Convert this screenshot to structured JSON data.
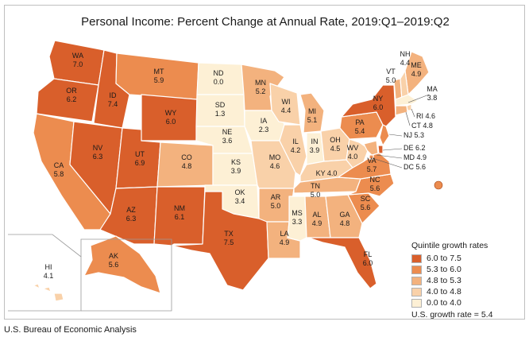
{
  "title": "Personal Income: Percent Change at Annual Rate, 2019:Q1–2019:Q2",
  "source": "U.S. Bureau of Economic Analysis",
  "legend": {
    "title": "Quintile growth rates",
    "classes": [
      {
        "label": "6.0 to 7.5",
        "color": "#d95f2b"
      },
      {
        "label": "5.3 to 6.0",
        "color": "#ec8c4f"
      },
      {
        "label": "4.8 to 5.3",
        "color": "#f3b27e"
      },
      {
        "label": "4.0 to 4.8",
        "color": "#f9d1a9"
      },
      {
        "label": "0.0 to 4.0",
        "color": "#fdf0d5"
      }
    ],
    "us_rate": "U.S. growth rate = 5.4"
  },
  "states": [
    {
      "abbr": "WA",
      "value": "7.0"
    },
    {
      "abbr": "OR",
      "value": "6.2"
    },
    {
      "abbr": "CA",
      "value": "5.8"
    },
    {
      "abbr": "ID",
      "value": "7.4"
    },
    {
      "abbr": "NV",
      "value": "6.3"
    },
    {
      "abbr": "UT",
      "value": "6.9"
    },
    {
      "abbr": "AZ",
      "value": "6.3"
    },
    {
      "abbr": "MT",
      "value": "5.9"
    },
    {
      "abbr": "WY",
      "value": "6.0"
    },
    {
      "abbr": "CO",
      "value": "4.8"
    },
    {
      "abbr": "NM",
      "value": "6.1"
    },
    {
      "abbr": "ND",
      "value": "0.0"
    },
    {
      "abbr": "SD",
      "value": "1.3"
    },
    {
      "abbr": "NE",
      "value": "3.6"
    },
    {
      "abbr": "KS",
      "value": "3.9"
    },
    {
      "abbr": "OK",
      "value": "3.4"
    },
    {
      "abbr": "TX",
      "value": "7.5"
    },
    {
      "abbr": "MN",
      "value": "5.2"
    },
    {
      "abbr": "IA",
      "value": "2.3"
    },
    {
      "abbr": "MO",
      "value": "4.6"
    },
    {
      "abbr": "AR",
      "value": "5.0"
    },
    {
      "abbr": "LA",
      "value": "4.9"
    },
    {
      "abbr": "WI",
      "value": "4.4"
    },
    {
      "abbr": "IL",
      "value": "4.2"
    },
    {
      "abbr": "MI",
      "value": "5.1"
    },
    {
      "abbr": "IN",
      "value": "3.9"
    },
    {
      "abbr": "OH",
      "value": "4.5"
    },
    {
      "abbr": "KY",
      "value": "4.0"
    },
    {
      "abbr": "TN",
      "value": "5.0"
    },
    {
      "abbr": "MS",
      "value": "3.3"
    },
    {
      "abbr": "AL",
      "value": "4.9"
    },
    {
      "abbr": "GA",
      "value": "4.8"
    },
    {
      "abbr": "FL",
      "value": "6.0"
    },
    {
      "abbr": "SC",
      "value": "5.6"
    },
    {
      "abbr": "NC",
      "value": "5.6"
    },
    {
      "abbr": "VA",
      "value": "5.7"
    },
    {
      "abbr": "WV",
      "value": "4.0"
    },
    {
      "abbr": "PA",
      "value": "5.4"
    },
    {
      "abbr": "NY",
      "value": "6.0"
    },
    {
      "abbr": "ME",
      "value": "4.9"
    },
    {
      "abbr": "VT",
      "value": "5.0"
    },
    {
      "abbr": "NH",
      "value": "4.4"
    },
    {
      "abbr": "MA",
      "value": "3.8"
    },
    {
      "abbr": "RI",
      "value": "4.6"
    },
    {
      "abbr": "CT",
      "value": "4.8"
    },
    {
      "abbr": "NJ",
      "value": "5.3"
    },
    {
      "abbr": "DE",
      "value": "6.2"
    },
    {
      "abbr": "MD",
      "value": "4.9"
    },
    {
      "abbr": "DC",
      "value": "5.6"
    },
    {
      "abbr": "AK",
      "value": "5.6"
    },
    {
      "abbr": "HI",
      "value": "4.1"
    }
  ]
}
